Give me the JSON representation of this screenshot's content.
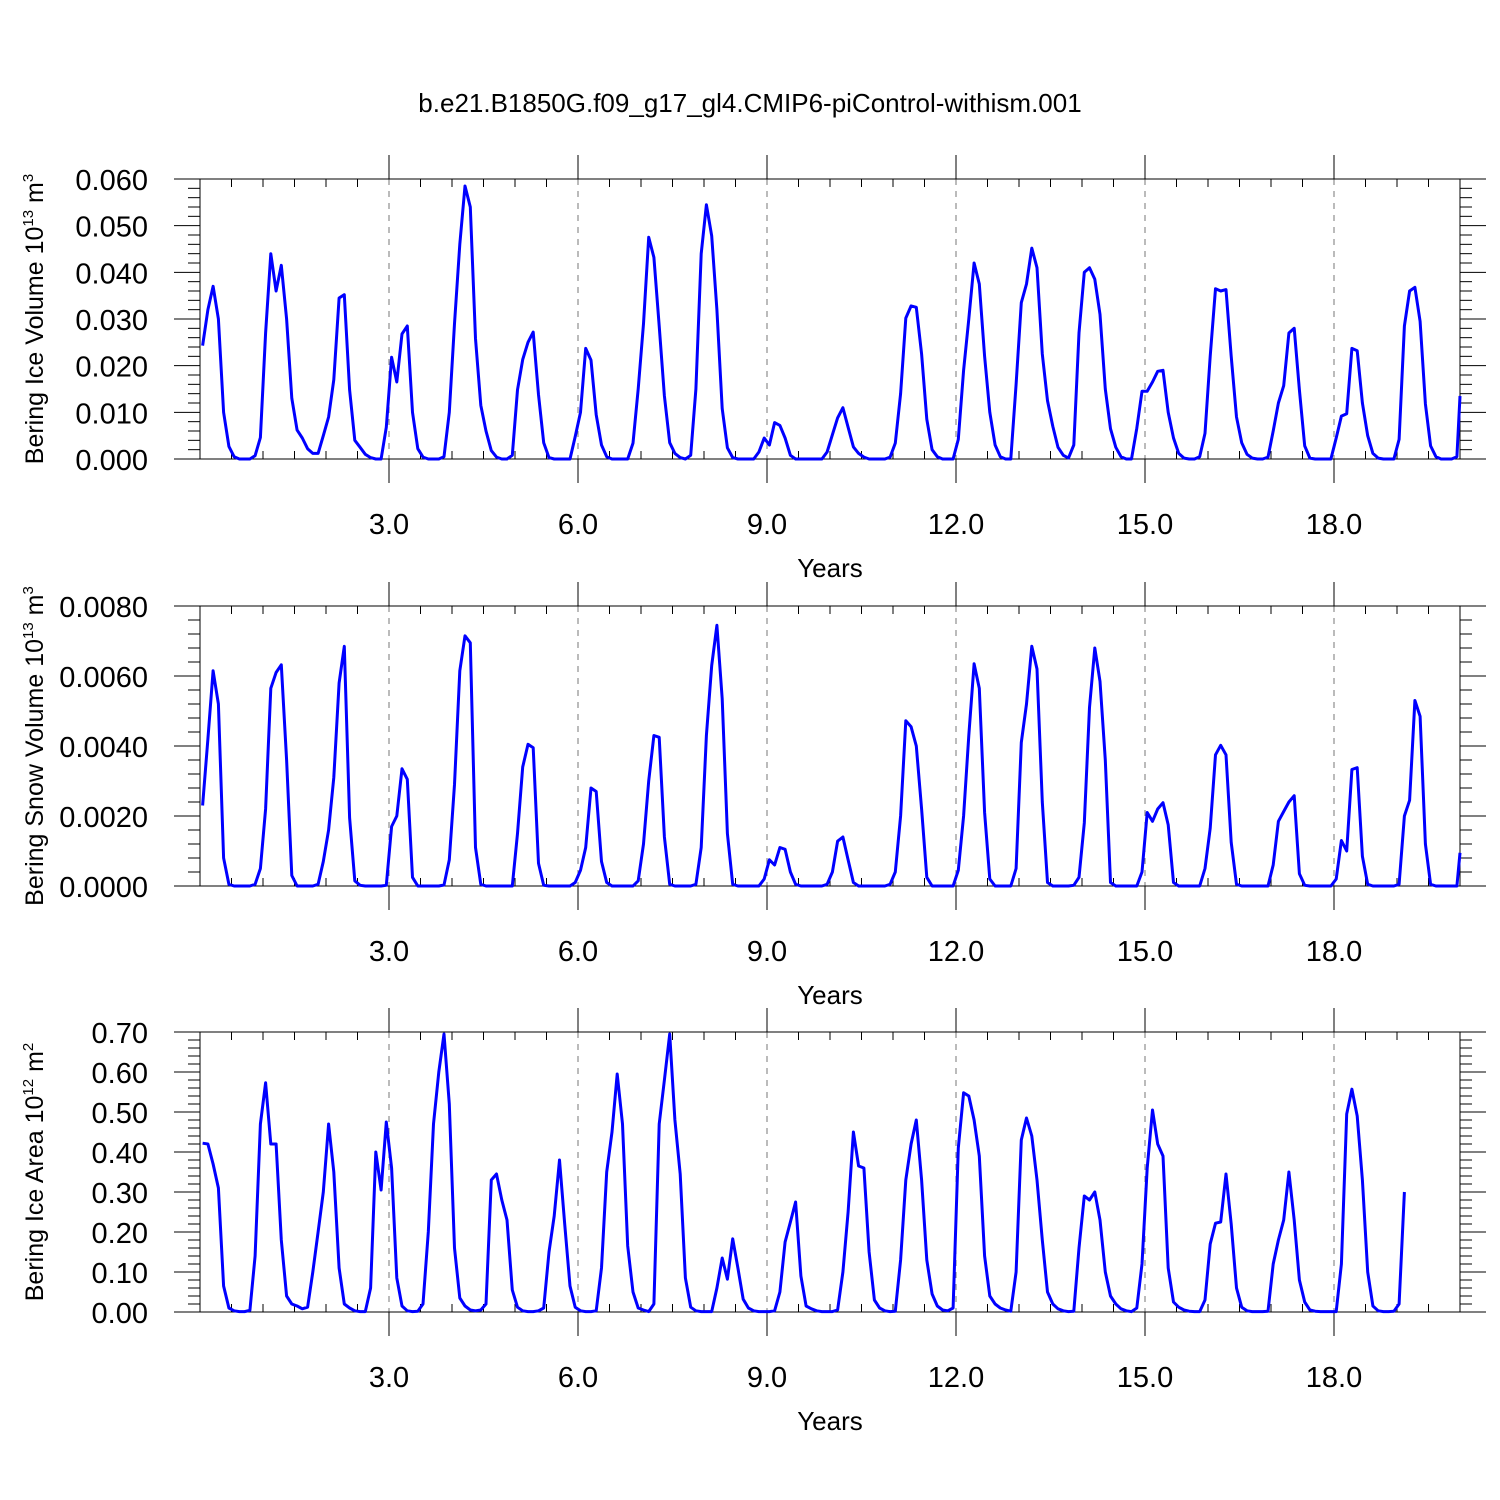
{
  "title": "b.e21.B1850G.f09_g17_gl4.CMIP6-piControl-withism.001",
  "colors": {
    "series": "#0000ff",
    "axis": "#000000",
    "grid": "#777777"
  },
  "chart_data": [
    {
      "type": "line",
      "ylabel": {
        "main": "Bering Ice Volume 10",
        "exp": "13",
        "unit": " m",
        "unit_exp": "3"
      },
      "xlabel": "Years",
      "xlim": [
        0,
        20
      ],
      "ylim": [
        0,
        0.06
      ],
      "xticks": [
        3,
        6,
        9,
        12,
        15,
        18
      ],
      "xtick_labels": [
        "3.0",
        "6.0",
        "9.0",
        "12.0",
        "15.0",
        "18.0"
      ],
      "yticks": [
        0,
        0.01,
        0.02,
        0.03,
        0.04,
        0.05,
        0.06
      ],
      "ytick_labels": [
        "0.000",
        "0.010",
        "0.020",
        "0.030",
        "0.040",
        "0.050",
        "0.060"
      ],
      "grid": "dashed vertical at x ticks",
      "series": [
        {
          "x_start": 0.0417,
          "x_step": 0.0833,
          "values": [
            0.0243,
            0.032,
            0.037,
            0.03,
            0.01,
            0.0027,
            0.0005,
            0.0,
            0.0,
            0.0,
            0.0007,
            0.0046,
            0.027,
            0.044,
            0.036,
            0.0415,
            0.03,
            0.013,
            0.0062,
            0.0045,
            0.0022,
            0.0012,
            0.0012,
            0.005,
            0.009,
            0.017,
            0.0345,
            0.0352,
            0.0148,
            0.004,
            0.0025,
            0.001,
            0.0003,
            0.0,
            0.0,
            0.0068,
            0.0218,
            0.0165,
            0.0268,
            0.0285,
            0.01,
            0.0022,
            0.0004,
            0.0,
            0.0,
            0.0,
            0.0005,
            0.01,
            0.029,
            0.046,
            0.0585,
            0.054,
            0.0258,
            0.0115,
            0.006,
            0.0018,
            0.0004,
            0.0,
            0.0,
            0.0008,
            0.0148,
            0.0213,
            0.025,
            0.0272,
            0.0138,
            0.0035,
            0.0003,
            0.0,
            0.0,
            0.0,
            0.0,
            0.0048,
            0.01,
            0.0237,
            0.0212,
            0.0095,
            0.003,
            0.0005,
            0.0,
            0.0,
            0.0,
            0.0,
            0.0034,
            0.015,
            0.029,
            0.0475,
            0.0432,
            0.0285,
            0.0135,
            0.0035,
            0.0012,
            0.0003,
            0.0,
            0.0008,
            0.015,
            0.044,
            0.0545,
            0.0478,
            0.032,
            0.0108,
            0.0024,
            0.0003,
            0.0,
            0.0,
            0.0,
            0.0,
            0.0015,
            0.0045,
            0.003,
            0.0078,
            0.0072,
            0.0045,
            0.0008,
            0.0,
            0.0,
            0.0,
            0.0,
            0.0,
            0.0,
            0.0015,
            0.0052,
            0.0088,
            0.011,
            0.0068,
            0.0026,
            0.0012,
            0.0004,
            0.0,
            0.0,
            0.0,
            0.0,
            0.0004,
            0.0034,
            0.014,
            0.0302,
            0.0328,
            0.0325,
            0.0225,
            0.0085,
            0.002,
            0.0005,
            0.0,
            0.0,
            0.0,
            0.0042,
            0.019,
            0.03,
            0.042,
            0.0375,
            0.022,
            0.01,
            0.003,
            0.0005,
            0.0,
            0.0,
            0.016,
            0.0335,
            0.0375,
            0.0452,
            0.041,
            0.0225,
            0.0125,
            0.007,
            0.0025,
            0.0008,
            0.0002,
            0.003,
            0.027,
            0.04,
            0.041,
            0.0385,
            0.031,
            0.015,
            0.0065,
            0.0025,
            0.0005,
            0.0,
            0.0,
            0.0066,
            0.0145,
            0.0145,
            0.0165,
            0.0188,
            0.019,
            0.01,
            0.0045,
            0.0012,
            0.0002,
            0.0,
            0.0,
            0.0005,
            0.0055,
            0.022,
            0.0365,
            0.036,
            0.0363,
            0.022,
            0.009,
            0.0035,
            0.001,
            0.0002,
            0.0,
            0.0,
            0.0004,
            0.006,
            0.012,
            0.0157,
            0.027,
            0.028,
            0.0148,
            0.0028,
            0.0002,
            0.0,
            0.0,
            0.0,
            0.0,
            0.0045,
            0.0092,
            0.0097,
            0.0237,
            0.0232,
            0.012,
            0.005,
            0.0012,
            0.0002,
            0.0,
            0.0,
            0.0,
            0.0042,
            0.0285,
            0.036,
            0.0368,
            0.0295,
            0.0118,
            0.0028,
            0.0005,
            0.0,
            0.0,
            0.0,
            0.0005,
            0.0135
          ]
        }
      ]
    },
    {
      "type": "line",
      "ylabel": {
        "main": "Bering Snow Volume 10",
        "exp": "13",
        "unit": " m",
        "unit_exp": "3"
      },
      "xlabel": "Years",
      "xlim": [
        0,
        20
      ],
      "ylim": [
        0,
        0.008
      ],
      "xticks": [
        3,
        6,
        9,
        12,
        15,
        18
      ],
      "xtick_labels": [
        "3.0",
        "6.0",
        "9.0",
        "12.0",
        "15.0",
        "18.0"
      ],
      "yticks": [
        0,
        0.002,
        0.004,
        0.006,
        0.008
      ],
      "ytick_labels": [
        "0.0000",
        "0.0020",
        "0.0040",
        "0.0060",
        "0.0080"
      ],
      "grid": "dashed vertical at x ticks",
      "series": [
        {
          "x_start": 0.0417,
          "x_step": 0.0833,
          "values": [
            0.0023,
            0.0042,
            0.00615,
            0.0052,
            0.0008,
            5e-05,
            0.0,
            0.0,
            0.0,
            0.0,
            5e-05,
            0.0005,
            0.0022,
            0.00565,
            0.0061,
            0.00632,
            0.0036,
            0.0003,
            0.0,
            0.0,
            0.0,
            0.0,
            5e-05,
            0.0007,
            0.0016,
            0.0031,
            0.0058,
            0.00685,
            0.00195,
            0.00015,
            2e-05,
            0.0,
            0.0,
            0.0,
            0.0,
            2e-05,
            0.0017,
            0.002,
            0.00335,
            0.00305,
            0.00025,
            0.0,
            0.0,
            0.0,
            0.0,
            0.0,
            3e-05,
            0.00075,
            0.0029,
            0.00615,
            0.00715,
            0.00695,
            0.0011,
            5e-05,
            0.0,
            0.0,
            0.0,
            0.0,
            0.0,
            0.0,
            0.0015,
            0.0034,
            0.00405,
            0.00395,
            0.00065,
            2e-05,
            0.0,
            0.0,
            0.0,
            0.0,
            0.0,
            0.0001,
            0.00045,
            0.0011,
            0.0028,
            0.0027,
            0.0007,
            0.0001,
            0.0,
            0.0,
            0.0,
            0.0,
            0.0,
            0.00015,
            0.0012,
            0.003,
            0.0043,
            0.00425,
            0.0014,
            5e-05,
            0.0,
            0.0,
            0.0,
            0.0,
            5e-05,
            0.0011,
            0.0043,
            0.0063,
            0.00745,
            0.00535,
            0.0015,
            5e-05,
            0.0,
            0.0,
            0.0,
            0.0,
            0.0,
            0.0002,
            0.00075,
            0.0006,
            0.0011,
            0.00105,
            0.0004,
            5e-05,
            0.0,
            0.0,
            0.0,
            0.0,
            0.0,
            5e-05,
            0.0004,
            0.00128,
            0.0014,
            0.00075,
            0.0001,
            0.0,
            0.0,
            0.0,
            0.0,
            0.0,
            0.0,
            5e-05,
            0.0004,
            0.002,
            0.00472,
            0.00455,
            0.004,
            0.0022,
            0.00025,
            0.0,
            0.0,
            0.0,
            0.0,
            0.0,
            0.00045,
            0.002,
            0.0043,
            0.00635,
            0.00565,
            0.0021,
            0.0002,
            0.0,
            0.0,
            0.0,
            0.0,
            0.0005,
            0.0041,
            0.0052,
            0.00685,
            0.0062,
            0.0024,
            0.0001,
            0.0,
            0.0,
            0.0,
            0.0,
            2e-05,
            0.00025,
            0.0018,
            0.0051,
            0.0068,
            0.00585,
            0.0036,
            0.0001,
            0.0,
            0.0,
            0.0,
            0.0,
            0.0,
            0.0004,
            0.0021,
            0.00185,
            0.0022,
            0.00238,
            0.00175,
            0.0001,
            0.0,
            0.0,
            0.0,
            0.0,
            0.0,
            0.0005,
            0.00165,
            0.00375,
            0.00402,
            0.00375,
            0.00125,
            5e-05,
            0.0,
            0.0,
            0.0,
            0.0,
            0.0,
            0.0,
            0.0006,
            0.00185,
            0.00213,
            0.0024,
            0.00258,
            0.00035,
            2e-05,
            0.0,
            0.0,
            0.0,
            0.0,
            0.0,
            0.0002,
            0.0013,
            0.001,
            0.00333,
            0.00338,
            0.00085,
            5e-05,
            0.0,
            0.0,
            0.0,
            0.0,
            0.0,
            5e-05,
            0.002,
            0.00245,
            0.0053,
            0.00485,
            0.0012,
            5e-05,
            0.0,
            0.0,
            0.0,
            0.0,
            0.0,
            0.00095
          ]
        }
      ]
    },
    {
      "type": "line",
      "ylabel": {
        "main": "Bering Ice Area 10",
        "exp": "12",
        "unit": " m",
        "unit_exp": "2"
      },
      "xlabel": "Years",
      "xlim": [
        0,
        20
      ],
      "ylim": [
        0,
        0.7
      ],
      "xticks": [
        3,
        6,
        9,
        12,
        15,
        18
      ],
      "xtick_labels": [
        "3.0",
        "6.0",
        "9.0",
        "12.0",
        "15.0",
        "18.0"
      ],
      "yticks": [
        0,
        0.1,
        0.2,
        0.3,
        0.4,
        0.5,
        0.6,
        0.7
      ],
      "ytick_labels": [
        "0.00",
        "0.10",
        "0.20",
        "0.30",
        "0.40",
        "0.50",
        "0.60",
        "0.70"
      ],
      "grid": "dashed vertical at x ticks",
      "series": [
        {
          "x_start": 0.0417,
          "x_step": 0.0833,
          "values": [
            0.422,
            0.42,
            0.37,
            0.31,
            0.065,
            0.01,
            0.003,
            0.001,
            0.001,
            0.004,
            0.14,
            0.47,
            0.573,
            0.42,
            0.42,
            0.18,
            0.04,
            0.02,
            0.015,
            0.008,
            0.012,
            0.1,
            0.2,
            0.3,
            0.47,
            0.35,
            0.11,
            0.02,
            0.01,
            0.003,
            0.001,
            0.001,
            0.06,
            0.4,
            0.305,
            0.475,
            0.36,
            0.085,
            0.015,
            0.003,
            0.001,
            0.002,
            0.02,
            0.2,
            0.47,
            0.6,
            0.695,
            0.52,
            0.16,
            0.035,
            0.015,
            0.005,
            0.003,
            0.005,
            0.02,
            0.33,
            0.345,
            0.28,
            0.23,
            0.055,
            0.012,
            0.003,
            0.001,
            0.001,
            0.003,
            0.01,
            0.15,
            0.24,
            0.38,
            0.22,
            0.065,
            0.012,
            0.003,
            0.001,
            0.001,
            0.003,
            0.11,
            0.35,
            0.45,
            0.595,
            0.47,
            0.165,
            0.05,
            0.01,
            0.005,
            0.001,
            0.02,
            0.47,
            0.58,
            0.695,
            0.48,
            0.345,
            0.085,
            0.012,
            0.003,
            0.001,
            0.001,
            0.001,
            0.06,
            0.135,
            0.082,
            0.183,
            0.11,
            0.032,
            0.01,
            0.003,
            0.001,
            0.001,
            0.001,
            0.003,
            0.05,
            0.175,
            0.225,
            0.275,
            0.09,
            0.015,
            0.008,
            0.003,
            0.001,
            0.001,
            0.001,
            0.005,
            0.1,
            0.25,
            0.45,
            0.365,
            0.36,
            0.15,
            0.03,
            0.01,
            0.003,
            0.001,
            0.002,
            0.13,
            0.33,
            0.42,
            0.48,
            0.33,
            0.13,
            0.045,
            0.015,
            0.005,
            0.003,
            0.01,
            0.41,
            0.548,
            0.54,
            0.48,
            0.39,
            0.14,
            0.04,
            0.02,
            0.01,
            0.005,
            0.002,
            0.1,
            0.43,
            0.485,
            0.44,
            0.33,
            0.18,
            0.05,
            0.02,
            0.008,
            0.003,
            0.001,
            0.002,
            0.16,
            0.29,
            0.28,
            0.3,
            0.23,
            0.1,
            0.04,
            0.02,
            0.008,
            0.003,
            0.001,
            0.01,
            0.12,
            0.36,
            0.505,
            0.42,
            0.39,
            0.11,
            0.025,
            0.012,
            0.005,
            0.002,
            0.001,
            0.001,
            0.03,
            0.17,
            0.222,
            0.225,
            0.345,
            0.22,
            0.06,
            0.012,
            0.003,
            0.001,
            0.001,
            0.001,
            0.002,
            0.12,
            0.18,
            0.23,
            0.35,
            0.23,
            0.08,
            0.025,
            0.005,
            0.002,
            0.001,
            0.001,
            0.001,
            0.001,
            0.12,
            0.495,
            0.557,
            0.49,
            0.33,
            0.1,
            0.015,
            0.003,
            0.001,
            0.001,
            0.002,
            0.02,
            0.3
          ]
        }
      ]
    }
  ]
}
